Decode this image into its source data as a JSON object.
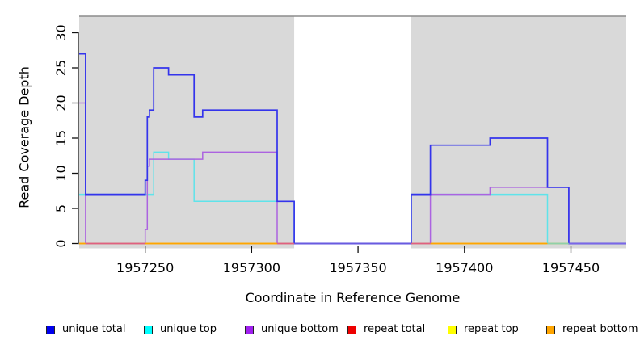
{
  "chart_data": {
    "type": "line",
    "title": "",
    "xlabel": "Coordinate in Reference Genome",
    "ylabel": "Read Coverage Depth",
    "xlim": [
      1957219,
      1957476
    ],
    "ylim": [
      0,
      32
    ],
    "x_ticks": [
      1957250,
      1957300,
      1957350,
      1957400,
      1957450
    ],
    "y_ticks": [
      0,
      5,
      10,
      15,
      20,
      25,
      30
    ],
    "grid": false,
    "legend_position": "bottom",
    "shaded_regions": [
      {
        "name": "repeat-region-left",
        "from": 1957219,
        "to": 1957320,
        "color": "#d9d9d9"
      },
      {
        "name": "repeat-region-right",
        "from": 1957375,
        "to": 1957476,
        "color": "#d9d9d9"
      }
    ],
    "series": [
      {
        "name": "unique total",
        "line_color": "#3434EC",
        "width": 1.7,
        "steps": [
          [
            1957219,
            27
          ],
          [
            1957222,
            7
          ],
          [
            1957250,
            9
          ],
          [
            1957251,
            18
          ],
          [
            1957252,
            19
          ],
          [
            1957254,
            25
          ],
          [
            1957261,
            24
          ],
          [
            1957273,
            18
          ],
          [
            1957277,
            19
          ],
          [
            1957312,
            6
          ],
          [
            1957320,
            0
          ],
          [
            1957375,
            7
          ],
          [
            1957384,
            14
          ],
          [
            1957412,
            15
          ],
          [
            1957439,
            8
          ],
          [
            1957449,
            0
          ]
        ]
      },
      {
        "name": "unique top",
        "line_color": "#5FE3EA",
        "width": 1.5,
        "steps": [
          [
            1957219,
            7
          ],
          [
            1957254,
            13
          ],
          [
            1957261,
            12
          ],
          [
            1957273,
            6
          ],
          [
            1957320,
            0
          ],
          [
            1957375,
            7
          ],
          [
            1957439,
            0
          ]
        ]
      },
      {
        "name": "unique bottom",
        "line_color": "#AC63E0",
        "width": 1.5,
        "steps": [
          [
            1957219,
            20
          ],
          [
            1957222,
            0
          ],
          [
            1957250,
            2
          ],
          [
            1957251,
            11
          ],
          [
            1957252,
            12
          ],
          [
            1957277,
            13
          ],
          [
            1957312,
            0
          ],
          [
            1957384,
            7
          ],
          [
            1957412,
            8
          ],
          [
            1957449,
            0
          ]
        ]
      },
      {
        "name": "repeat total",
        "line_color": "#DD3355",
        "width": 1.4,
        "steps": [
          [
            1957219,
            0
          ]
        ]
      },
      {
        "name": "repeat top",
        "line_color": "#FFFF00",
        "width": 1.4,
        "steps": [
          [
            1957219,
            0
          ]
        ]
      },
      {
        "name": "repeat bottom",
        "line_color": "#FFA500",
        "width": 1.4,
        "steps": [
          [
            1957219,
            0
          ]
        ]
      }
    ],
    "draw_order": [
      "repeat total",
      "repeat top",
      "repeat bottom",
      "unique top",
      "unique bottom",
      "unique total"
    ],
    "baseline_segments": [
      {
        "from": 1957219,
        "to": 1957222,
        "color": "#FFA500"
      },
      {
        "from": 1957222,
        "to": 1957250,
        "color": "#E06080"
      },
      {
        "from": 1957250,
        "to": 1957312,
        "color": "#FFA500"
      },
      {
        "from": 1957312,
        "to": 1957320,
        "color": "#E06080"
      },
      {
        "from": 1957320,
        "to": 1957375,
        "color": "#6A5AE0"
      },
      {
        "from": 1957375,
        "to": 1957384,
        "color": "#E06080"
      },
      {
        "from": 1957384,
        "to": 1957439,
        "color": "#FFA500"
      },
      {
        "from": 1957439,
        "to": 1957449,
        "color": "#8FD0A8"
      },
      {
        "from": 1957449,
        "to": 1957476,
        "color": "#7A66E8"
      }
    ]
  },
  "legend": {
    "items": [
      {
        "label": "unique total",
        "color": "#0000EE"
      },
      {
        "label": "unique top",
        "color": "#00FFFF"
      },
      {
        "label": "unique bottom",
        "color": "#A020F0"
      },
      {
        "label": "repeat total",
        "color": "#EE0000"
      },
      {
        "label": "repeat top",
        "color": "#FFFF00"
      },
      {
        "label": "repeat bottom",
        "color": "#FFA500"
      }
    ]
  }
}
